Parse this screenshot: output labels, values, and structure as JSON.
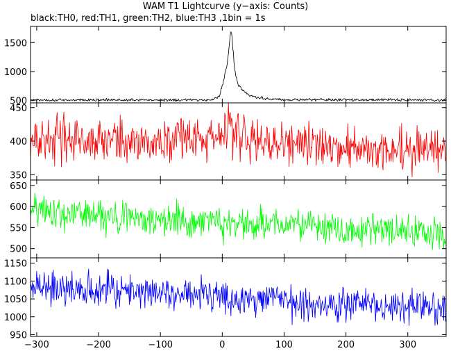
{
  "figure": {
    "title": "WAM T1 Lightcurve (y−axis: Counts)",
    "subtitle": "black:TH0, red:TH1, green:TH2, blue:TH3 ,1bin = 1s"
  },
  "chart_data": {
    "type": "line",
    "title": "WAM T1 Lightcurve (y−axis: Counts)",
    "subtitle": "black:TH0, red:TH1, green:TH2, blue:TH3 ,1bin = 1s",
    "xlabel": "",
    "ylabel": "Counts",
    "xlim": [
      -310,
      362
    ],
    "x_ticks": [
      -300,
      -200,
      -100,
      0,
      100,
      200,
      300
    ],
    "grid": false,
    "layout": "four vertically stacked panels sharing the x-axis",
    "panels": [
      {
        "series_name": "TH0",
        "color": "#000000",
        "ylim": [
          460,
          1780
        ],
        "y_ticks": [
          500,
          1000,
          1500
        ],
        "baseline": 510,
        "noise": 14,
        "points": [
          [
            -310,
            510
          ],
          [
            -20,
            510
          ],
          [
            -5,
            560
          ],
          [
            0,
            760
          ],
          [
            5,
            980
          ],
          [
            8,
            1150
          ],
          [
            10,
            1350
          ],
          [
            12,
            1550
          ],
          [
            14,
            1720
          ],
          [
            16,
            1560
          ],
          [
            18,
            1300
          ],
          [
            20,
            1050
          ],
          [
            24,
            820
          ],
          [
            30,
            720
          ],
          [
            36,
            640
          ],
          [
            45,
            590
          ],
          [
            60,
            550
          ],
          [
            80,
            525
          ],
          [
            100,
            515
          ],
          [
            362,
            510
          ]
        ]
      },
      {
        "series_name": "TH1",
        "color": "#ff0000",
        "ylim": [
          342,
          457
        ],
        "y_ticks": [
          350,
          400,
          450
        ],
        "baseline": 402,
        "noise": 20,
        "points": [
          [
            -310,
            403
          ],
          [
            -200,
            402
          ],
          [
            -60,
            400
          ],
          [
            -20,
            404
          ],
          [
            0,
            412
          ],
          [
            10,
            423
          ],
          [
            18,
            416
          ],
          [
            30,
            407
          ],
          [
            60,
            398
          ],
          [
            150,
            392
          ],
          [
            250,
            388
          ],
          [
            362,
            387
          ]
        ]
      },
      {
        "series_name": "TH2",
        "color": "#00ff00",
        "ylim": [
          478,
          663
        ],
        "y_ticks": [
          500,
          550,
          600,
          650
        ],
        "baseline": 575,
        "noise": 24,
        "points": [
          [
            -310,
            590
          ],
          [
            -200,
            580
          ],
          [
            -100,
            572
          ],
          [
            0,
            560
          ],
          [
            100,
            555
          ],
          [
            200,
            545
          ],
          [
            300,
            540
          ],
          [
            362,
            538
          ]
        ]
      },
      {
        "series_name": "TH3",
        "color": "#0000ff",
        "ylim": [
          945,
          1165
        ],
        "y_ticks": [
          950,
          1000,
          1050,
          1100,
          1150
        ],
        "baseline": 1070,
        "noise": 30,
        "points": [
          [
            -310,
            1085
          ],
          [
            -200,
            1080
          ],
          [
            -100,
            1067
          ],
          [
            0,
            1058
          ],
          [
            100,
            1045
          ],
          [
            200,
            1040
          ],
          [
            300,
            1030
          ],
          [
            362,
            1018
          ]
        ]
      }
    ]
  }
}
